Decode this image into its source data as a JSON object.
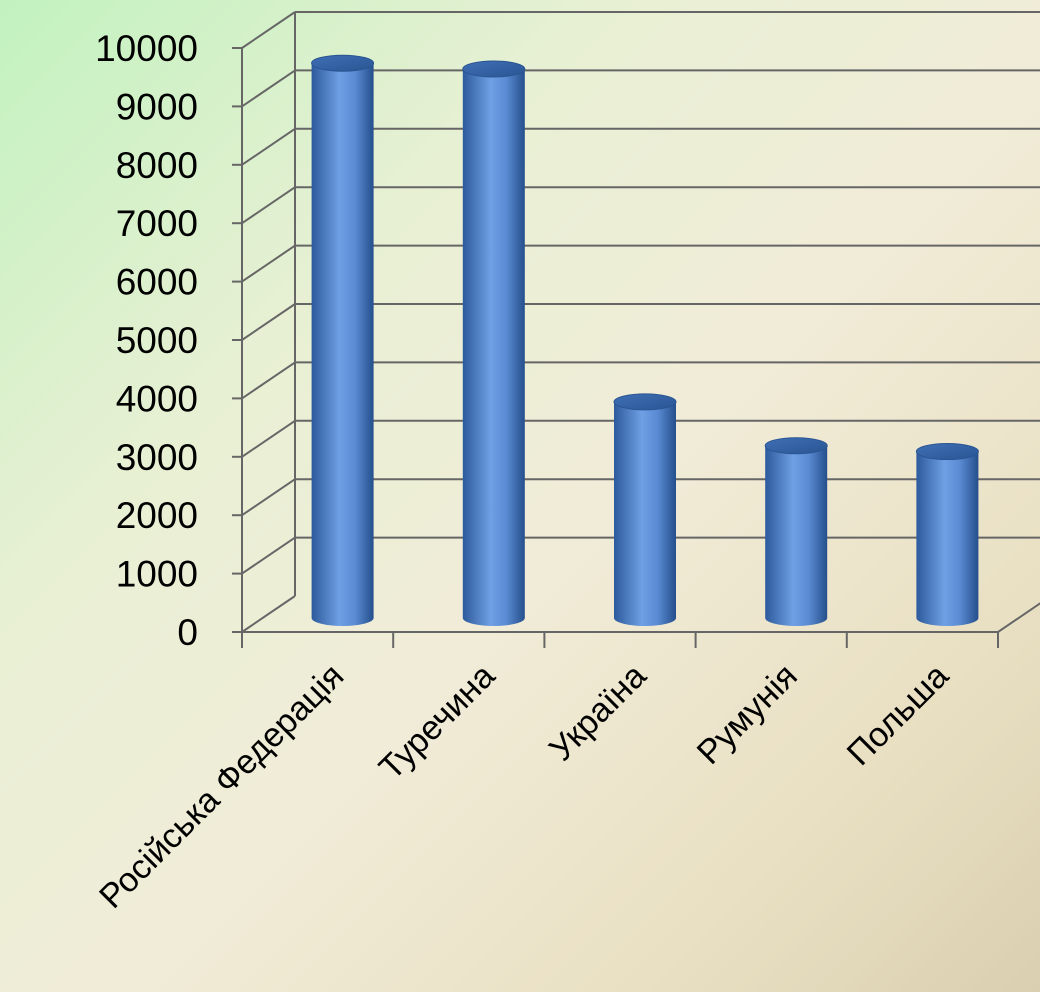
{
  "chart_data": {
    "type": "bar",
    "bar_shape": "cylinder",
    "categories": [
      "Російська Федерація",
      "Туречина",
      "Україна",
      "Румунія",
      "Польша"
    ],
    "values": [
      9500,
      9400,
      3700,
      2950,
      2850
    ],
    "ylim": [
      0,
      10000
    ],
    "yticks": [
      "0",
      "1000",
      "2000",
      "3000",
      "4000",
      "5000",
      "6000",
      "7000",
      "8000",
      "9000",
      "10000"
    ],
    "grid": true,
    "legend": "none",
    "colors": {
      "bar": "#4a7cc2",
      "bar_light": "#7eaaf0",
      "bar_dark": "#254f8c",
      "grid": "#666666"
    }
  }
}
